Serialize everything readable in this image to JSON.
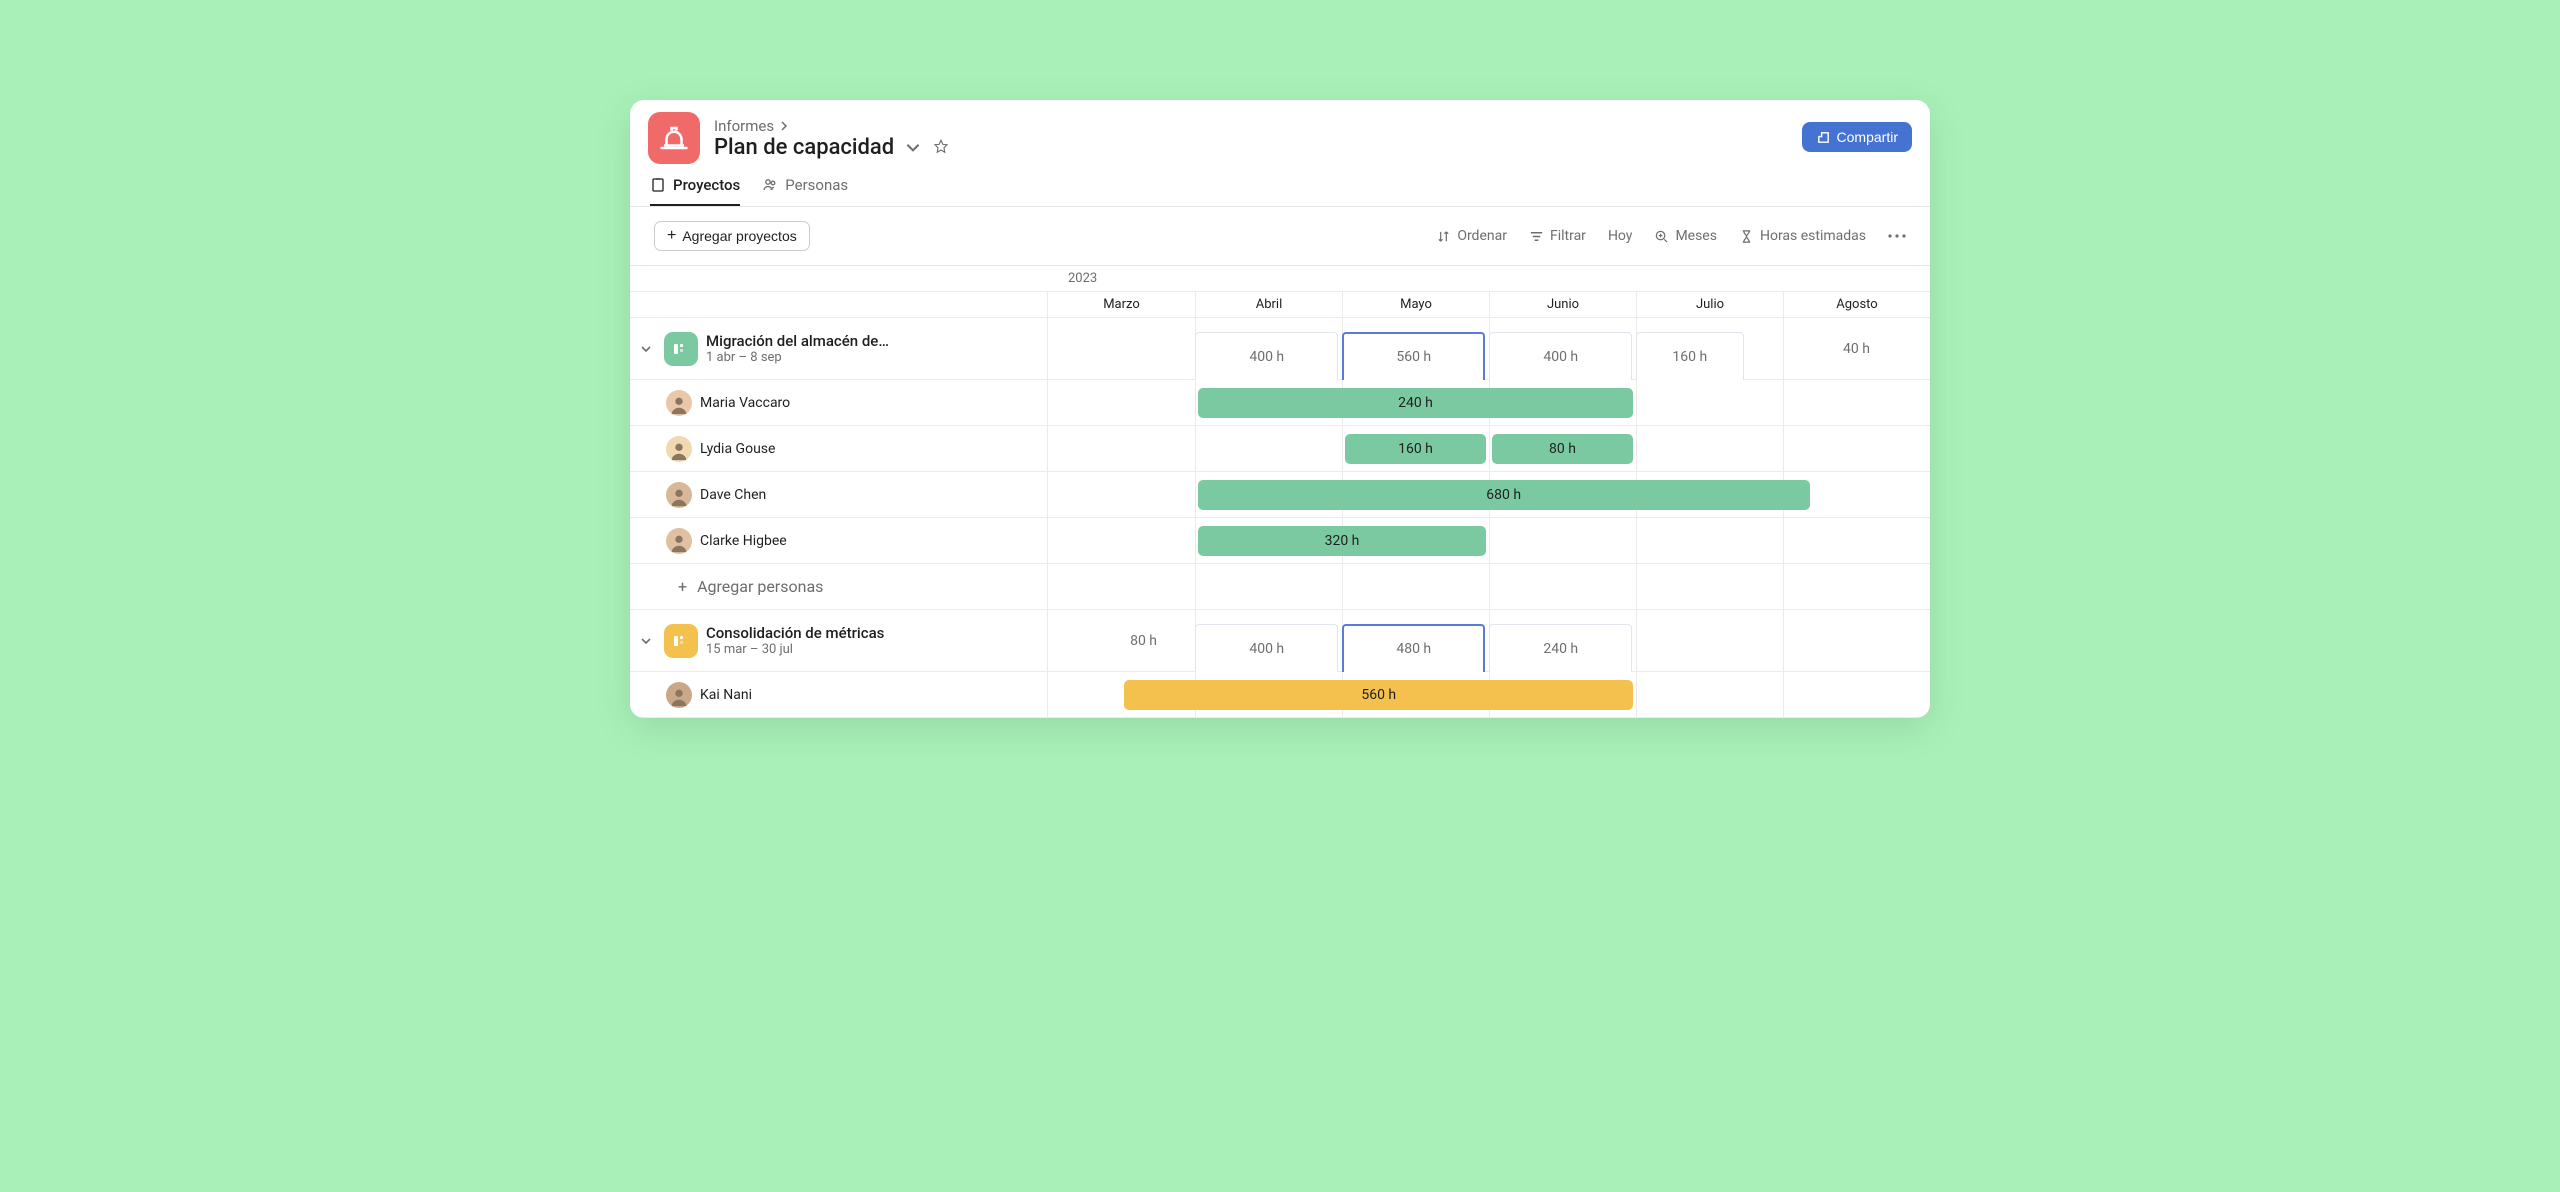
{
  "colors": {
    "page_bg": "#a8f0b8",
    "app_icon_bg": "#f06a6a",
    "share_btn_bg": "#4573d2",
    "bar_green": "#7bc9a0",
    "bar_yellow": "#f5c14e",
    "proj1_icon_bg": "#7bc9a0",
    "proj2_icon_bg": "#f5c14e",
    "border": "#edeae9",
    "text": "#1e1f21",
    "muted": "#6d6e6f",
    "selection": "#5a7bd6"
  },
  "breadcrumb": {
    "label": "Informes"
  },
  "page_title": "Plan de capacidad",
  "share_label": "Compartir",
  "tabs": {
    "projects": "Proyectos",
    "people": "Personas"
  },
  "toolbar": {
    "add_projects": "Agregar proyectos",
    "sort": "Ordenar",
    "filter": "Filtrar",
    "today": "Hoy",
    "months": "Meses",
    "hours": "Horas estimadas"
  },
  "timeline": {
    "year": "2023",
    "months": [
      "Marzo",
      "Abril",
      "Mayo",
      "Junio",
      "Julio",
      "Agosto"
    ],
    "col_pct": 16.6667
  },
  "projects": [
    {
      "name": "Migración del almacén de…",
      "dates": "1 abr – 8 sep",
      "icon_bg": "#7bc9a0",
      "summary": [
        {
          "col": 1,
          "span": 1,
          "label": "400 h",
          "selected": false
        },
        {
          "col": 2,
          "span": 1,
          "label": "560 h",
          "selected": true
        },
        {
          "col": 3,
          "span": 1,
          "label": "400 h",
          "selected": false
        },
        {
          "col": 4,
          "span": 1,
          "label": "160 h",
          "selected": false,
          "short": true,
          "align": "start"
        },
        {
          "col": 5,
          "span": 1,
          "label": "40 h",
          "selected": false,
          "bare": true
        }
      ],
      "people": [
        {
          "name": "Maria Vaccaro",
          "avatar": "#e8c8a8",
          "bars": [
            {
              "col_start": 1,
              "span": 3,
              "label": "240 h",
              "color": "#7bc9a0"
            }
          ]
        },
        {
          "name": "Lydia Gouse",
          "avatar": "#f0d8b0",
          "bars": [
            {
              "col_start": 2,
              "span": 1,
              "label": "160 h",
              "color": "#7bc9a0"
            },
            {
              "col_start": 3,
              "span": 1,
              "label": "80 h",
              "color": "#7bc9a0"
            }
          ]
        },
        {
          "name": "Dave Chen",
          "avatar": "#d8b898",
          "bars": [
            {
              "col_start": 1,
              "span": 4.2,
              "label": "680 h",
              "color": "#7bc9a0"
            }
          ]
        },
        {
          "name": "Clarke Higbee",
          "avatar": "#e0c0a0",
          "bars": [
            {
              "col_start": 1,
              "span": 2,
              "label": "320 h",
              "color": "#7bc9a0"
            }
          ]
        }
      ],
      "add_person_label": "Agregar personas"
    },
    {
      "name": "Consolidación de métricas",
      "dates": "15 mar – 30 jul",
      "icon_bg": "#f5c14e",
      "summary": [
        {
          "col": 0,
          "span": 1,
          "label": "80 h",
          "selected": false,
          "bare": true,
          "half_right": true
        },
        {
          "col": 1,
          "span": 1,
          "label": "400 h",
          "selected": false
        },
        {
          "col": 2,
          "span": 1,
          "label": "480 h",
          "selected": true
        },
        {
          "col": 3,
          "span": 1,
          "label": "240 h",
          "selected": false
        }
      ],
      "people": [
        {
          "name": "Kai Nani",
          "avatar": "#c8a888",
          "bars": [
            {
              "col_start": 0.5,
              "span": 3.5,
              "label": "560 h",
              "color": "#f5c14e"
            }
          ]
        }
      ]
    }
  ]
}
